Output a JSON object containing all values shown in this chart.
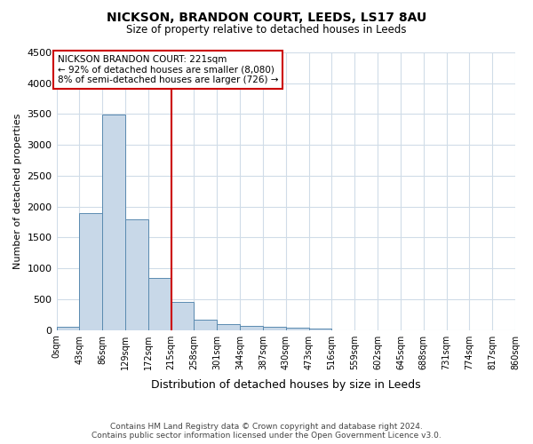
{
  "title": "NICKSON, BRANDON COURT, LEEDS, LS17 8AU",
  "subtitle": "Size of property relative to detached houses in Leeds",
  "xlabel": "Distribution of detached houses by size in Leeds",
  "ylabel": "Number of detached properties",
  "bar_color": "#c8d8e8",
  "bar_edge_color": "#5a8ab0",
  "bin_edges": [
    0,
    43,
    86,
    129,
    172,
    215,
    258,
    301,
    344,
    387,
    430,
    473,
    516,
    559,
    602,
    645,
    688,
    731,
    774,
    817,
    860
  ],
  "bar_heights": [
    50,
    1900,
    3490,
    1790,
    845,
    450,
    163,
    100,
    65,
    46,
    35,
    18,
    0,
    0,
    0,
    0,
    0,
    0,
    0,
    0
  ],
  "xticklabels": [
    "0sqm",
    "43sqm",
    "86sqm",
    "129sqm",
    "172sqm",
    "215sqm",
    "258sqm",
    "301sqm",
    "344sqm",
    "387sqm",
    "430sqm",
    "473sqm",
    "516sqm",
    "559sqm",
    "602sqm",
    "645sqm",
    "688sqm",
    "731sqm",
    "774sqm",
    "817sqm",
    "860sqm"
  ],
  "ylim": [
    0,
    4500
  ],
  "yticks": [
    0,
    500,
    1000,
    1500,
    2000,
    2500,
    3000,
    3500,
    4000,
    4500
  ],
  "vline_x": 215,
  "vline_color": "#cc0000",
  "annotation_text": "NICKSON BRANDON COURT: 221sqm\n← 92% of detached houses are smaller (8,080)\n8% of semi-detached houses are larger (726) →",
  "footer_line1": "Contains HM Land Registry data © Crown copyright and database right 2024.",
  "footer_line2": "Contains public sector information licensed under the Open Government Licence v3.0.",
  "background_color": "#ffffff",
  "grid_color": "#d0dce8"
}
